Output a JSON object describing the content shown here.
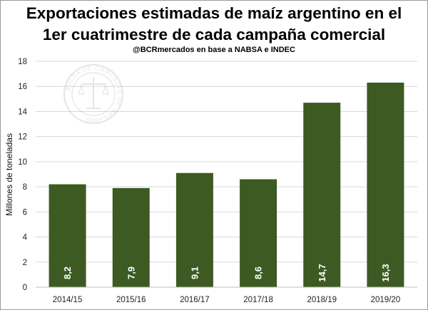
{
  "chart_data": {
    "type": "bar",
    "title_line1": "Exportaciones estimadas de maíz argentino en el",
    "title_line2": "1er cuatrimestre de cada campaña comercial",
    "subtitle": "@BCRmercados en base a NABSA e INDEC",
    "ylabel": "Millones de toneladas",
    "xlabel": "",
    "ylim": [
      0,
      18
    ],
    "yticks": [
      0,
      2,
      4,
      6,
      8,
      10,
      12,
      14,
      16,
      18
    ],
    "grid": true,
    "legend": "none",
    "categories": [
      "2014/15",
      "2015/16",
      "2016/17",
      "2017/18",
      "2018/19",
      "2019/20"
    ],
    "values": [
      8.2,
      7.9,
      9.1,
      8.6,
      14.7,
      16.3
    ],
    "data_labels": [
      "8,2",
      "7,9",
      "9,1",
      "8,6",
      "14,7",
      "16,3"
    ],
    "bar_color": "#3d5a22",
    "watermark": "BOLSA DE COMERCIO DE ROSARIO"
  }
}
